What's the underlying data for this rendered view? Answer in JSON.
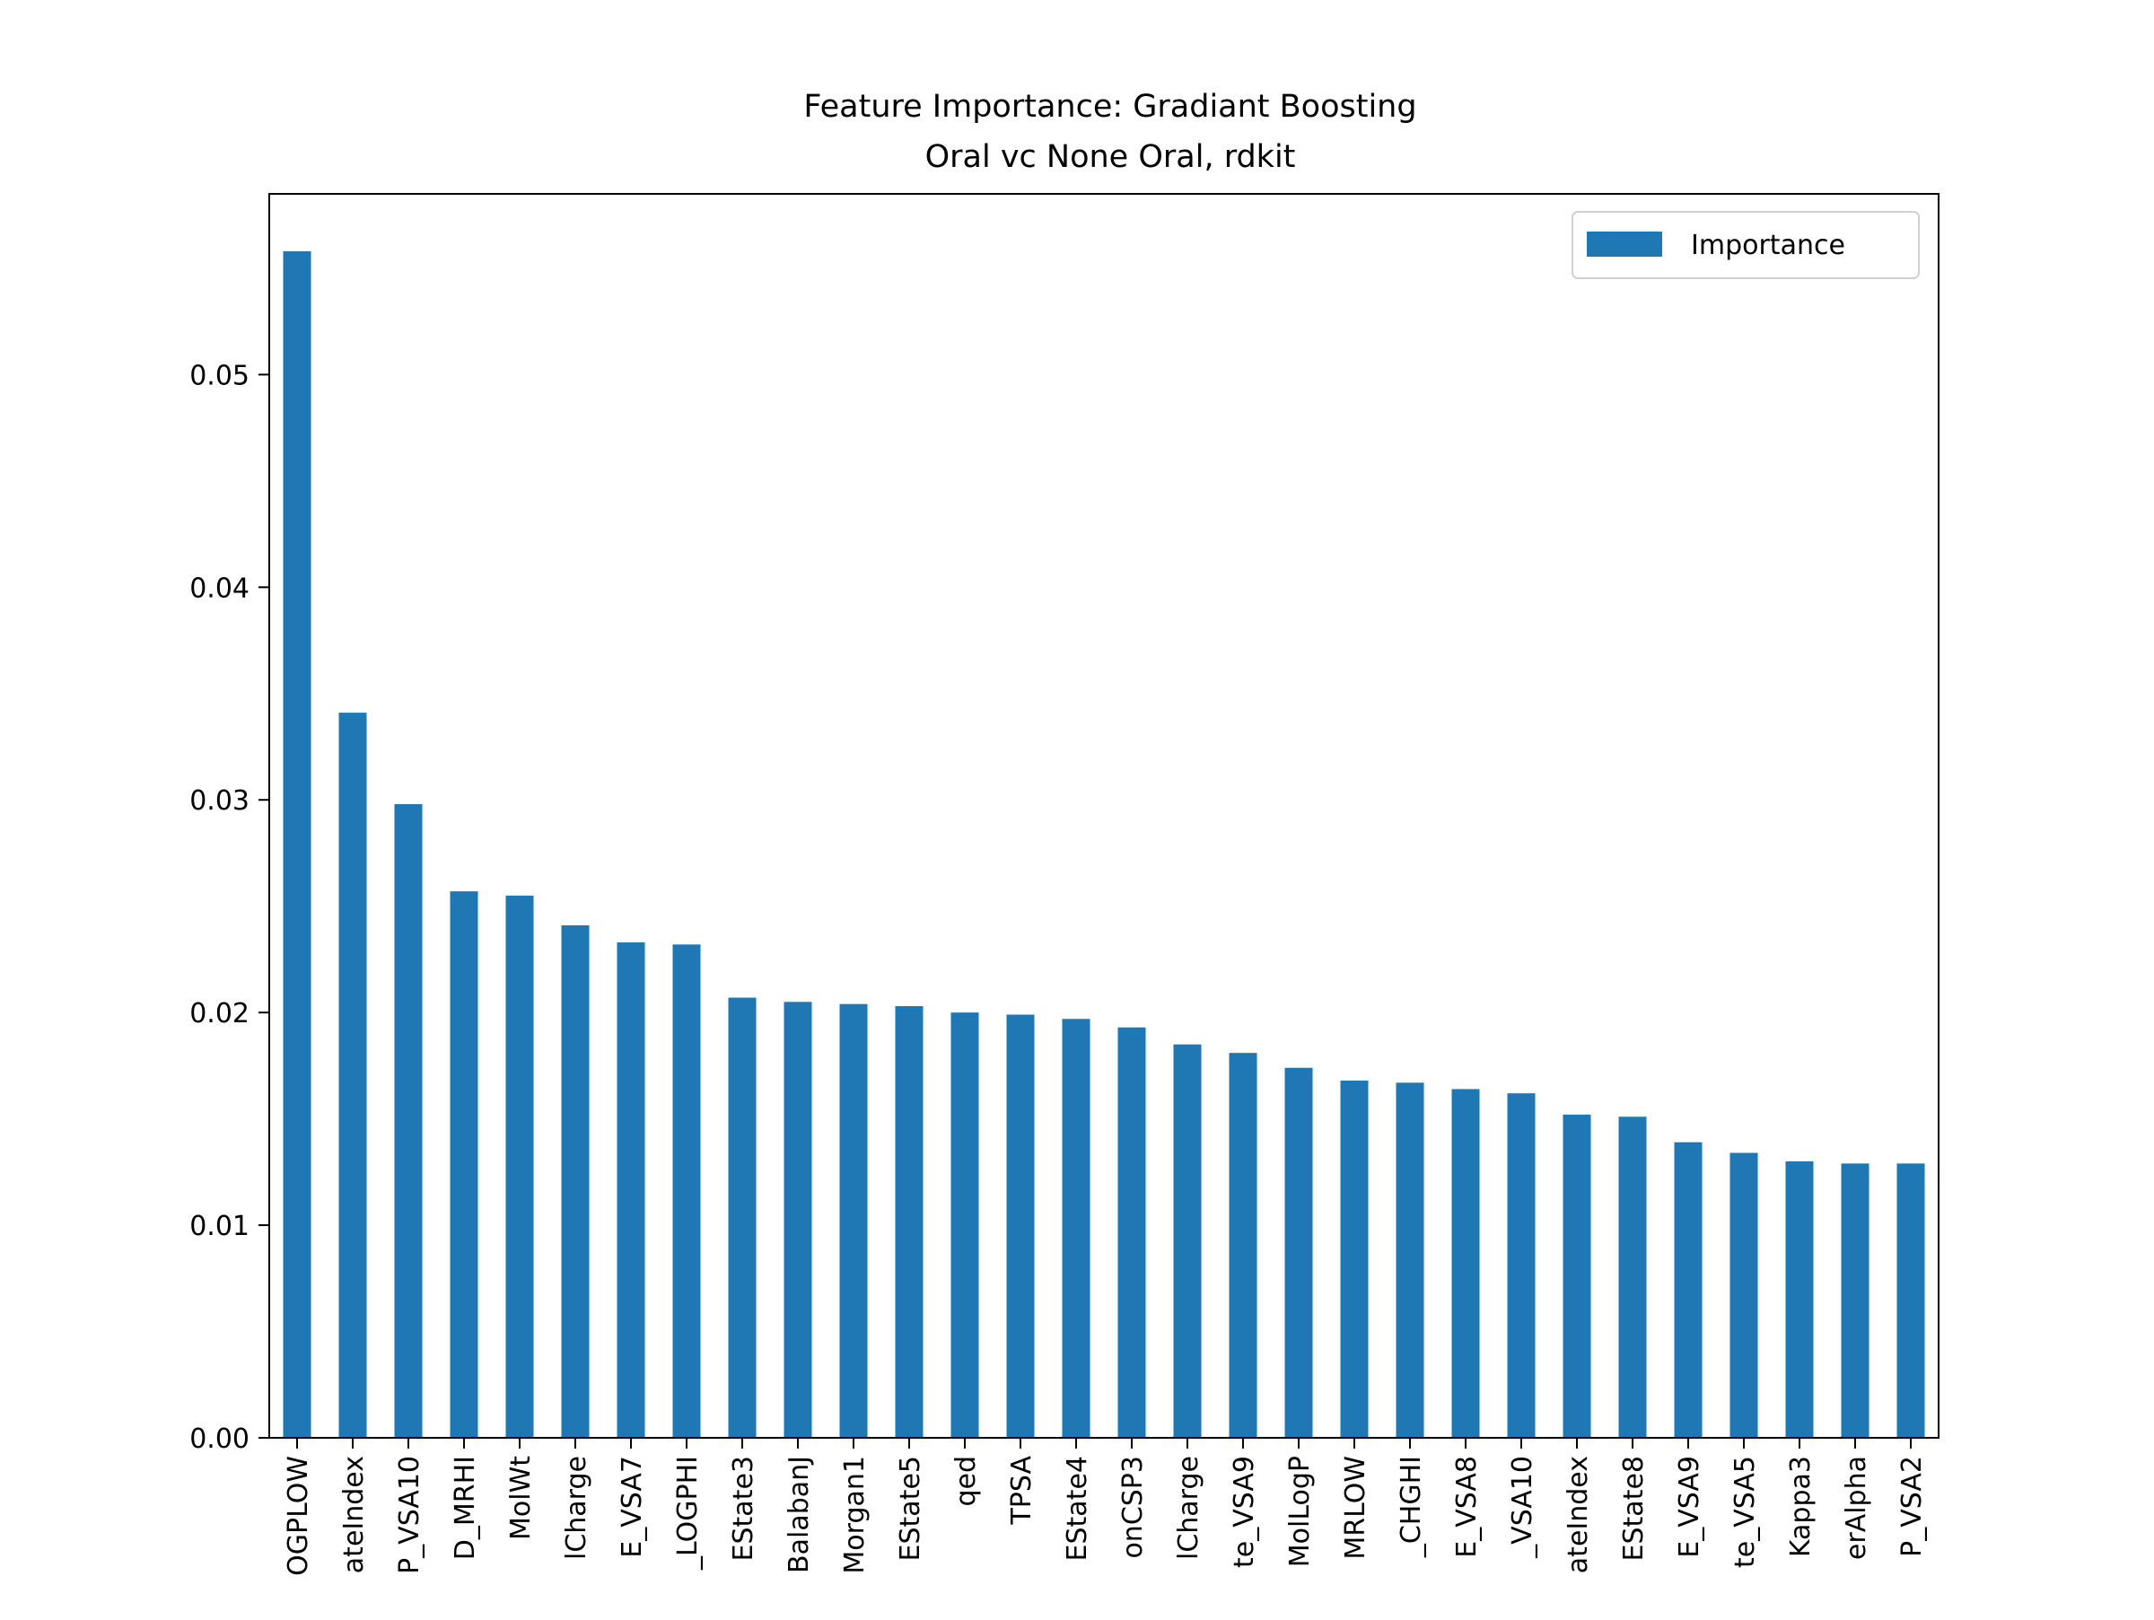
{
  "chart_data": {
    "type": "bar",
    "title": "Feature Importance: Gradiant Boosting",
    "subtitle": "Oral vc None Oral, rdkit",
    "xlabel": "",
    "ylabel": "",
    "ylim": [
      0,
      0.0585
    ],
    "yticks": [
      0.0,
      0.01,
      0.02,
      0.03,
      0.04,
      0.05
    ],
    "ytick_labels": [
      "0.00",
      "0.01",
      "0.02",
      "0.03",
      "0.04",
      "0.05"
    ],
    "grid": false,
    "legend": {
      "position": "top-right",
      "entries": [
        "Importance"
      ]
    },
    "bar_color": "#1f77b4",
    "categories": [
      "OGPLOW",
      "ateIndex",
      "P_VSA10",
      "D_MRHI",
      "MolWt",
      "lCharge",
      "E_VSA7",
      "_LOGPHI",
      "EState3",
      "BalabanJ",
      "Morgan1",
      "EState5",
      "qed",
      "TPSA",
      "EState4",
      "onCSP3",
      "lCharge",
      "te_VSA9",
      "MolLogP",
      "MRLOW",
      "_CHGHI",
      "E_VSA8",
      "_VSA10",
      "ateIndex",
      "EState8",
      "E_VSA9",
      "te_VSA5",
      "Kappa3",
      "erAlpha",
      "P_VSA2"
    ],
    "series": [
      {
        "name": "Importance",
        "values": [
          0.0558,
          0.0341,
          0.0298,
          0.0257,
          0.0255,
          0.0241,
          0.0233,
          0.0232,
          0.0207,
          0.0205,
          0.0204,
          0.0203,
          0.02,
          0.0199,
          0.0197,
          0.0193,
          0.0185,
          0.0181,
          0.0174,
          0.0168,
          0.0167,
          0.0164,
          0.0162,
          0.0152,
          0.0151,
          0.0139,
          0.0134,
          0.013,
          0.0129,
          0.0129
        ]
      }
    ]
  }
}
